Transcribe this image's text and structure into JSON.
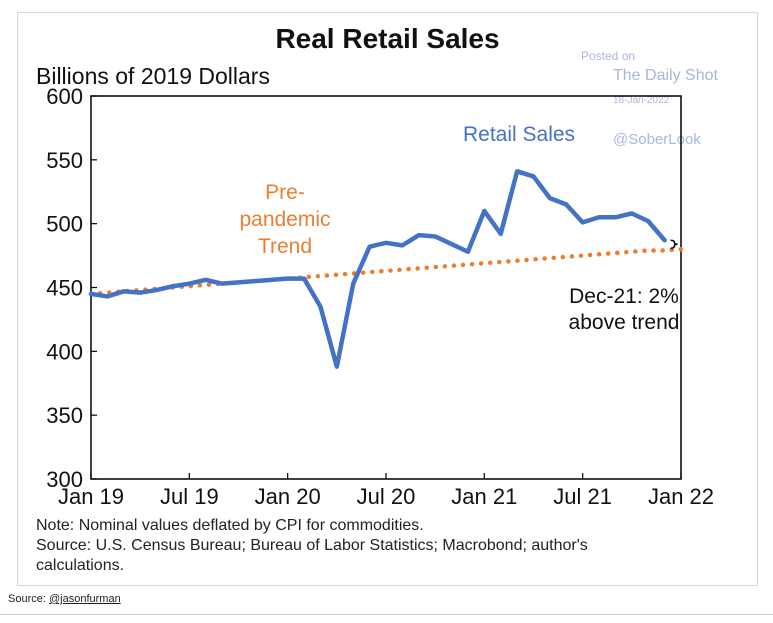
{
  "watermark": {
    "posted_on": "Posted on",
    "site": "The Daily Shot",
    "date": "18-Jan-2022",
    "handle": "@SoberLook"
  },
  "notes": {
    "note": "Note: Nominal values deflated by CPI for commodities.",
    "source_line1": "Source: U.S. Census Bureau; Bureau of Labor Statistics; Macrobond; author's",
    "source_line2": "calculations."
  },
  "page_source": {
    "label": "Source:",
    "link": "@jasonfurman"
  },
  "colors": {
    "retail_sales": "#4472c4",
    "trend": "#ed7d31",
    "axis": "#000000"
  },
  "chart_data": {
    "type": "line",
    "title": "Real Retail Sales",
    "ylabel": "Billions of 2019 Dollars",
    "xlabel": "",
    "ylim": [
      300,
      600
    ],
    "yticks": [
      300,
      350,
      400,
      450,
      500,
      550,
      600
    ],
    "x_tick_labels": [
      "Jan 19",
      "Jul 19",
      "Jan 20",
      "Jul 20",
      "Jan 21",
      "Jul 21",
      "Jan 22"
    ],
    "x": [
      "Jan 19",
      "Feb 19",
      "Mar 19",
      "Apr 19",
      "May 19",
      "Jun 19",
      "Jul 19",
      "Aug 19",
      "Sep 19",
      "Oct 19",
      "Nov 19",
      "Dec 19",
      "Jan 20",
      "Feb 20",
      "Mar 20",
      "Apr 20",
      "May 20",
      "Jun 20",
      "Jul 20",
      "Aug 20",
      "Sep 20",
      "Oct 20",
      "Nov 20",
      "Dec 20",
      "Jan 21",
      "Feb 21",
      "Mar 21",
      "Apr 21",
      "May 21",
      "Jun 21",
      "Jul 21",
      "Aug 21",
      "Sep 21",
      "Oct 21",
      "Nov 21",
      "Dec 21"
    ],
    "series": [
      {
        "name": "Retail Sales",
        "style": "solid",
        "values": [
          445,
          443,
          447,
          446,
          448,
          451,
          453,
          456,
          453,
          454,
          455,
          456,
          457,
          457,
          435,
          388,
          453,
          482,
          485,
          483,
          491,
          490,
          484,
          478,
          510,
          492,
          541,
          537,
          520,
          515,
          501,
          505,
          505,
          508,
          502,
          487
        ]
      },
      {
        "name": "Pre-pandemic Trend",
        "style": "dotted",
        "values": [
          445,
          446,
          447,
          448,
          449,
          450,
          451,
          452,
          453,
          454,
          455,
          456,
          457,
          458,
          459,
          460,
          461,
          462,
          463,
          464,
          465,
          466,
          467,
          468,
          469,
          470,
          471,
          472,
          473,
          474,
          475,
          476,
          477,
          478,
          479,
          479
        ]
      }
    ],
    "annotations": {
      "retail_label": "Retail Sales",
      "trend_label": [
        "Pre-",
        "pandemic",
        "Trend"
      ],
      "gap_label": [
        "Dec-21: 2%",
        "above trend"
      ]
    },
    "grid": false
  }
}
